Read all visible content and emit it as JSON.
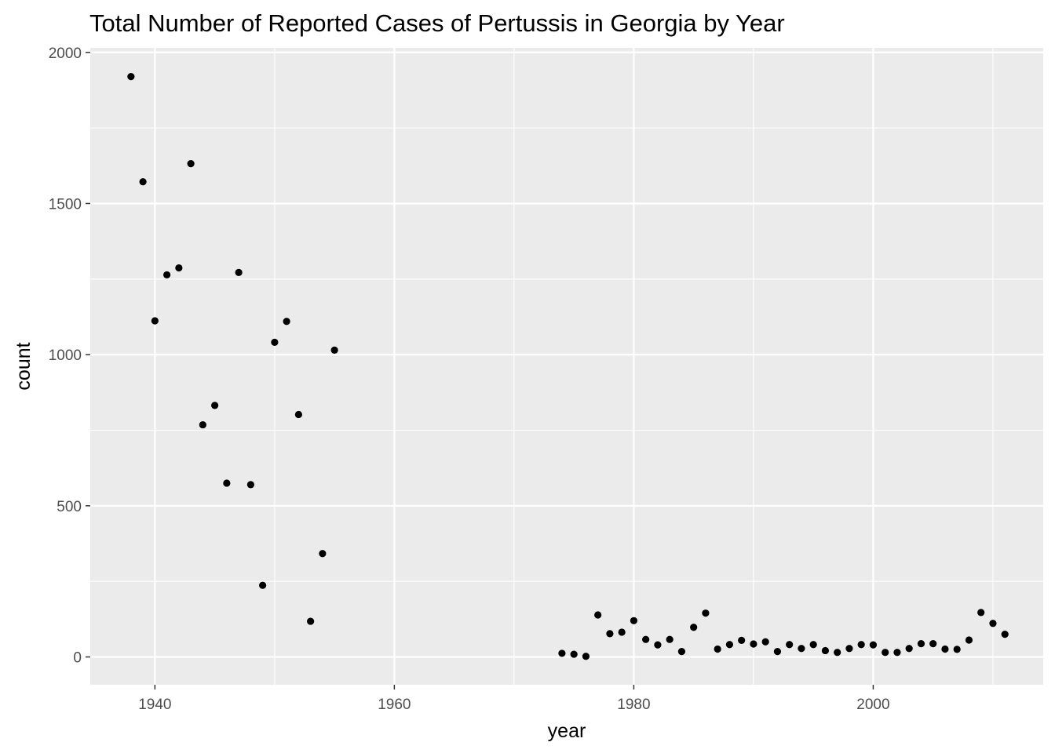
{
  "chart_data": {
    "type": "scatter",
    "title": "Total Number of Reported Cases of Pertussis in Georgia by Year",
    "xlabel": "year",
    "ylabel": "count",
    "xlim": [
      1934.6,
      2014.2
    ],
    "ylim": [
      -92,
      2015
    ],
    "x_ticks": [
      1940,
      1960,
      1980,
      2000
    ],
    "x_minor": [
      1950,
      1970,
      1990,
      2010
    ],
    "y_ticks": [
      0,
      500,
      1000,
      1500,
      2000
    ],
    "y_minor": [
      250,
      750,
      1250,
      1750
    ],
    "x_tick_labels": [
      "1940",
      "1960",
      "1980",
      "2000"
    ],
    "y_tick_labels": [
      "0",
      "500",
      "1000",
      "1500",
      "2000"
    ],
    "grid": true,
    "legend": "none",
    "colors": {
      "panel": "#ebebeb",
      "grid": "#ffffff",
      "point": "#000000",
      "tick_text": "#4d4d4d",
      "tick_mark": "#333333"
    },
    "x": [
      1938,
      1939,
      1940,
      1941,
      1942,
      1943,
      1944,
      1945,
      1946,
      1947,
      1948,
      1949,
      1950,
      1951,
      1952,
      1953,
      1954,
      1955,
      1974,
      1975,
      1976,
      1977,
      1978,
      1979,
      1980,
      1981,
      1982,
      1983,
      1984,
      1985,
      1986,
      1987,
      1988,
      1989,
      1990,
      1991,
      1992,
      1993,
      1994,
      1995,
      1996,
      1997,
      1998,
      1999,
      2000,
      2001,
      2002,
      2003,
      2004,
      2005,
      2006,
      2007,
      2008,
      2009,
      2010,
      2011
    ],
    "y": [
      1920,
      1572,
      1112,
      1264,
      1287,
      1632,
      768,
      832,
      575,
      1272,
      570,
      237,
      1041,
      1110,
      802,
      118,
      342,
      1015,
      12,
      9,
      2,
      139,
      77,
      82,
      120,
      58,
      40,
      58,
      18,
      98,
      145,
      26,
      41,
      55,
      43,
      50,
      18,
      41,
      28,
      41,
      21,
      15,
      28,
      41,
      40,
      15,
      15,
      28,
      44,
      44,
      26,
      25,
      56,
      147,
      111,
      75
    ]
  }
}
